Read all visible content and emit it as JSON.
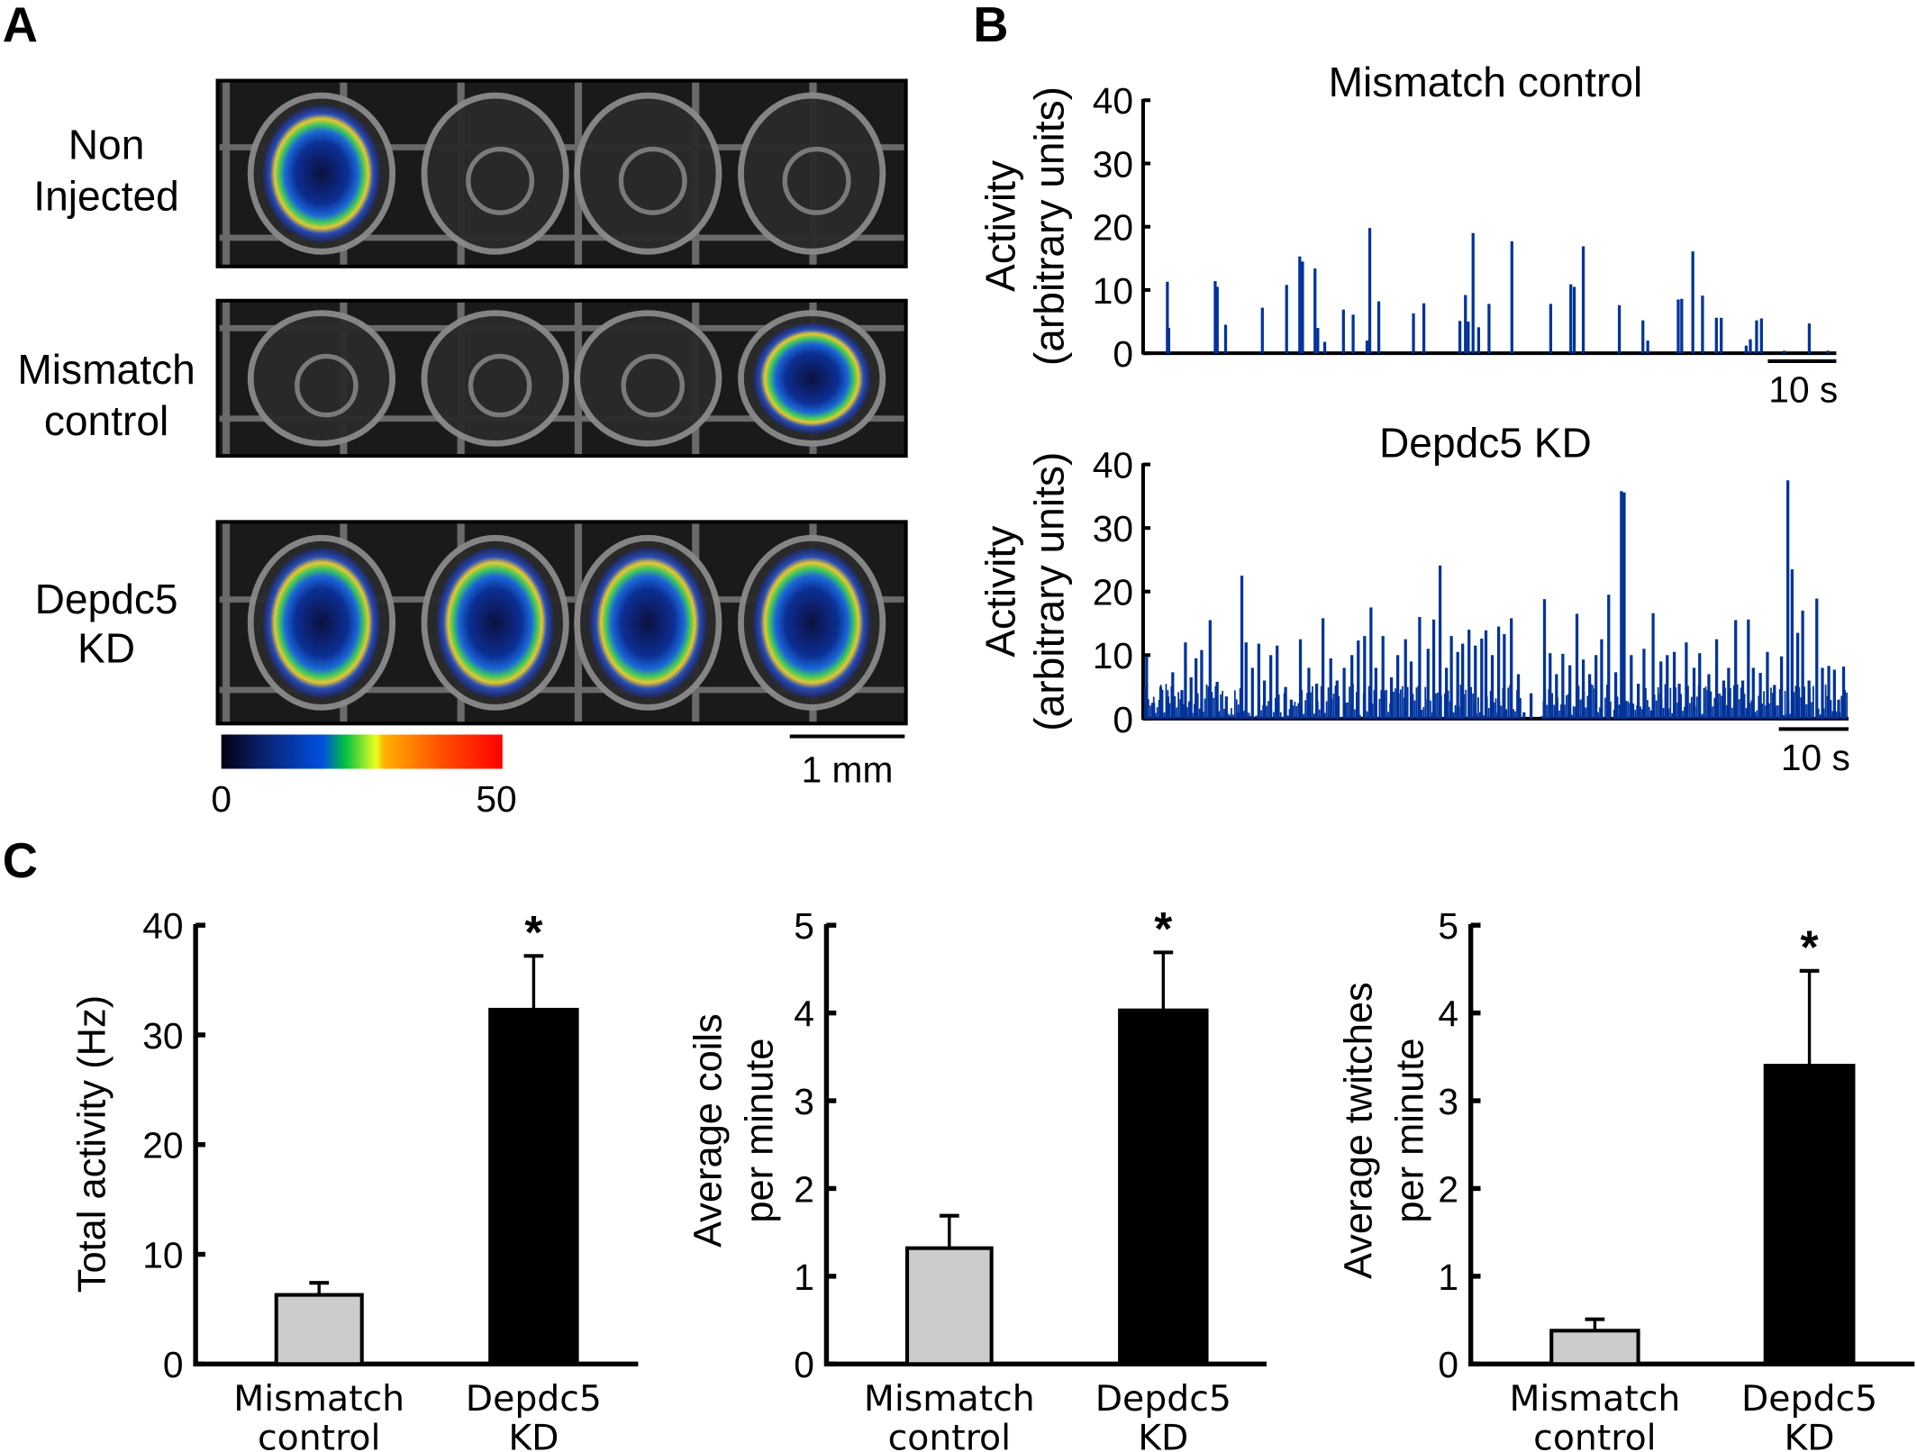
{
  "panels": {
    "a": "A",
    "b": "B",
    "c": "C"
  },
  "panel_a": {
    "rows": [
      {
        "line1": "Non",
        "line2": "Injected",
        "active_wells": [
          1
        ]
      },
      {
        "line1": "Mismatch",
        "line2": "control",
        "active_wells": [
          4
        ]
      },
      {
        "line1": "Depdc5",
        "line2": "KD",
        "active_wells": [
          1,
          2,
          3,
          4
        ]
      }
    ],
    "colorbar": {
      "min_label": "0",
      "max_label": "50",
      "colors": [
        "#000010",
        "#0a1f8a",
        "#0050e0",
        "#00c040",
        "#e8ff20",
        "#ffa000",
        "#ff5000",
        "#ff0000"
      ]
    },
    "scale_bar": "1 mm"
  },
  "chart_data": [
    {
      "type": "bar",
      "id": "B1",
      "title": "Mismatch control",
      "ylabel_line1": "Activity",
      "ylabel_line2": "(arbitrary units)",
      "yticks": [
        "0",
        "10",
        "20",
        "30",
        "40"
      ],
      "ylim": [
        0,
        40
      ],
      "scale_bar": "10 s",
      "color": "#00339a",
      "series_note": "time as percent of trace",
      "points": [
        [
          3.5,
          11.3
        ],
        [
          3.7,
          4
        ],
        [
          10.4,
          11.4
        ],
        [
          10.7,
          10.5
        ],
        [
          11.9,
          4.5
        ],
        [
          17.2,
          7.2
        ],
        [
          20.7,
          10.8
        ],
        [
          22.6,
          15.3
        ],
        [
          23.0,
          14.5
        ],
        [
          24.8,
          13.4
        ],
        [
          25.2,
          4
        ],
        [
          26.2,
          1.8
        ],
        [
          28.9,
          6.9
        ],
        [
          30.3,
          6.1
        ],
        [
          32.3,
          2
        ],
        [
          32.7,
          19.8
        ],
        [
          34.0,
          8.2
        ],
        [
          39.0,
          6.3
        ],
        [
          40.5,
          7.9
        ],
        [
          45.7,
          5.1
        ],
        [
          46.5,
          9.2
        ],
        [
          46.9,
          5
        ],
        [
          47.6,
          19
        ],
        [
          48.4,
          4.1
        ],
        [
          49.9,
          7.8
        ],
        [
          53.2,
          17.7
        ],
        [
          58.8,
          7.8
        ],
        [
          61.7,
          10.9
        ],
        [
          62.2,
          10.5
        ],
        [
          63.5,
          16.9
        ],
        [
          68.7,
          7.6
        ],
        [
          72.1,
          5.2
        ],
        [
          72.8,
          2
        ],
        [
          77.2,
          8.5
        ],
        [
          77.7,
          8.6
        ],
        [
          79.3,
          16.1
        ],
        [
          80.7,
          9.1
        ],
        [
          82.7,
          5.6
        ],
        [
          83.4,
          5.6
        ],
        [
          87.0,
          1.2
        ],
        [
          87.6,
          2.2
        ],
        [
          88.5,
          5.2
        ],
        [
          89.2,
          5.5
        ],
        [
          92.5,
          0.4
        ],
        [
          96.1,
          4.7
        ],
        [
          98.8,
          0.4
        ]
      ]
    },
    {
      "type": "bar",
      "id": "B2",
      "title": "Depdc5 KD",
      "ylabel_line1": "Activity",
      "ylabel_line2": "(arbitrary units)",
      "yticks": [
        "0",
        "10",
        "20",
        "30",
        "40"
      ],
      "ylim": [
        0,
        40
      ],
      "scale_bar": "10 s",
      "color": "#00339a",
      "series_note": "time as percent of trace",
      "points": [
        [
          0.5,
          9.8
        ],
        [
          1.5,
          2.5
        ],
        [
          2.5,
          5
        ],
        [
          3.5,
          3.5
        ],
        [
          4.2,
          7.3
        ],
        [
          5.5,
          4.5
        ],
        [
          6.0,
          12
        ],
        [
          6.8,
          6.5
        ],
        [
          7.5,
          9.5
        ],
        [
          8.3,
          10.8
        ],
        [
          9.5,
          15.5
        ],
        [
          10.5,
          5.8
        ],
        [
          11.8,
          3.5
        ],
        [
          13.5,
          1
        ],
        [
          14.0,
          22.5
        ],
        [
          14.6,
          12
        ],
        [
          15.5,
          8
        ],
        [
          16.4,
          11.8
        ],
        [
          17.2,
          6
        ],
        [
          18.1,
          10
        ],
        [
          19.0,
          11.5
        ],
        [
          20.2,
          5
        ],
        [
          21.0,
          3
        ],
        [
          22.3,
          12.5
        ],
        [
          23.5,
          8
        ],
        [
          24.6,
          5.5
        ],
        [
          25.5,
          15.8
        ],
        [
          26.6,
          9.5
        ],
        [
          27.5,
          6
        ],
        [
          28.5,
          8
        ],
        [
          29.6,
          10
        ],
        [
          30.5,
          12.3
        ],
        [
          31.4,
          13
        ],
        [
          32.3,
          17.5
        ],
        [
          33.0,
          8
        ],
        [
          34.0,
          13
        ],
        [
          35.2,
          6.5
        ],
        [
          36.1,
          10
        ],
        [
          37.2,
          12.5
        ],
        [
          38.0,
          9
        ],
        [
          39.2,
          16
        ],
        [
          40.4,
          11
        ],
        [
          41.2,
          15.6
        ],
        [
          42.1,
          24.1
        ],
        [
          43.0,
          8
        ],
        [
          43.7,
          13
        ],
        [
          44.6,
          10.5
        ],
        [
          45.3,
          11.8
        ],
        [
          46.2,
          14
        ],
        [
          47.1,
          11.5
        ],
        [
          48.0,
          12.6
        ],
        [
          48.6,
          13.9
        ],
        [
          49.5,
          10
        ],
        [
          50.4,
          14.5
        ],
        [
          51.2,
          13.3
        ],
        [
          52.2,
          15.8
        ],
        [
          53.2,
          7
        ],
        [
          54.0,
          1
        ],
        [
          55.0,
          4
        ],
        [
          56.9,
          18.8
        ],
        [
          57.7,
          10.3
        ],
        [
          58.6,
          7
        ],
        [
          59.5,
          10.2
        ],
        [
          60.5,
          8.4
        ],
        [
          61.5,
          16.5
        ],
        [
          62.4,
          9.3
        ],
        [
          63.3,
          7
        ],
        [
          64.2,
          10
        ],
        [
          65.0,
          12.5
        ],
        [
          66.0,
          19.5
        ],
        [
          67.0,
          7.3
        ],
        [
          67.8,
          35.8
        ],
        [
          68.2,
          35.6
        ],
        [
          69.2,
          10
        ],
        [
          70.2,
          5.5
        ],
        [
          71.0,
          11
        ],
        [
          72.3,
          16.6
        ],
        [
          73.4,
          9
        ],
        [
          74.3,
          10
        ],
        [
          75.3,
          10.5
        ],
        [
          76.0,
          5.5
        ],
        [
          77.0,
          12
        ],
        [
          78.1,
          8
        ],
        [
          78.9,
          10.3
        ],
        [
          80.2,
          7
        ],
        [
          81.3,
          12.5
        ],
        [
          82.3,
          6
        ],
        [
          83.0,
          8
        ],
        [
          84.0,
          15.5
        ],
        [
          85.0,
          6
        ],
        [
          85.8,
          15.6
        ],
        [
          86.5,
          8
        ],
        [
          87.5,
          7.2
        ],
        [
          88.5,
          10.5
        ],
        [
          89.5,
          5.3
        ],
        [
          90.5,
          9.8
        ],
        [
          91.4,
          37.5
        ],
        [
          92.0,
          23.5
        ],
        [
          92.8,
          13.5
        ],
        [
          93.5,
          17
        ],
        [
          94.4,
          6
        ],
        [
          95.5,
          18.9
        ],
        [
          96.3,
          8
        ],
        [
          97.2,
          8.3
        ],
        [
          98.0,
          7.7
        ],
        [
          98.6,
          3
        ],
        [
          99.3,
          8.2
        ]
      ]
    },
    {
      "type": "bar",
      "id": "C1",
      "ylabel": "Total activity (Hz)",
      "categories": [
        {
          "line1": "Mismatch",
          "line2": "control"
        },
        {
          "line1": "Depdc5",
          "line2": "KD"
        }
      ],
      "values": [
        6.3,
        32.3
      ],
      "error_upper": [
        7.4,
        37.2
      ],
      "colors": [
        "#cccccc",
        "#000000"
      ],
      "significance": [
        "",
        "*"
      ],
      "yticks": [
        "0",
        "10",
        "20",
        "30",
        "40"
      ],
      "ylim": [
        0,
        40
      ]
    },
    {
      "type": "bar",
      "id": "C2",
      "ylabel_line1": "Average coils",
      "ylabel_line2": "per minute",
      "categories": [
        {
          "line1": "Mismatch",
          "line2": "control"
        },
        {
          "line1": "Depdc5",
          "line2": "KD"
        }
      ],
      "values": [
        1.32,
        4.03
      ],
      "error_upper": [
        1.69,
        4.69
      ],
      "colors": [
        "#cccccc",
        "#000000"
      ],
      "significance": [
        "",
        "*"
      ],
      "yticks": [
        "0",
        "1",
        "2",
        "3",
        "4",
        "5"
      ],
      "ylim": [
        0,
        5
      ]
    },
    {
      "type": "bar",
      "id": "C3",
      "ylabel_line1": "Average twitches",
      "ylabel_line2": "per minute",
      "categories": [
        {
          "line1": "Mismatch",
          "line2": "control"
        },
        {
          "line1": "Depdc5",
          "line2": "KD"
        }
      ],
      "values": [
        0.38,
        3.4
      ],
      "error_upper": [
        0.51,
        4.48
      ],
      "colors": [
        "#cccccc",
        "#000000"
      ],
      "significance": [
        "",
        "*"
      ],
      "yticks": [
        "0",
        "1",
        "2",
        "3",
        "4",
        "5"
      ],
      "ylim": [
        0,
        5
      ]
    }
  ]
}
